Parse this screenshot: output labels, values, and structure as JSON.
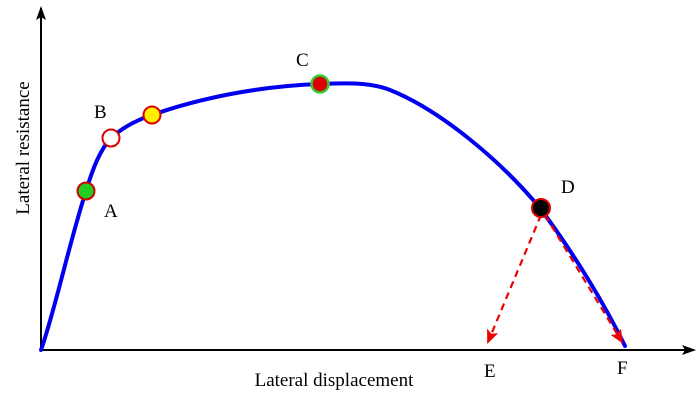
{
  "axes": {
    "x_label": "Lateral displacement",
    "y_label": "Lateral resistance",
    "color": "#000000"
  },
  "curve": {
    "color": "#0000ee"
  },
  "points": [
    {
      "id": "A",
      "label": "A",
      "fill": "#22cc22",
      "stroke": "#cc0000"
    },
    {
      "id": "B",
      "label": "B",
      "fill": "#ffffff",
      "stroke": "#dd0000"
    },
    {
      "id": "Y",
      "label": "",
      "fill": "#ffee00",
      "stroke": "#dd0000"
    },
    {
      "id": "C",
      "label": "C",
      "fill": "#dd0000",
      "stroke": "#33cc33"
    },
    {
      "id": "D",
      "label": "D",
      "fill": "#000000",
      "stroke": "#dd0000"
    }
  ],
  "unloading_paths": [
    {
      "from": "D",
      "to": "E",
      "label": "E",
      "color": "#ee0000",
      "style": "dashed"
    },
    {
      "from": "D",
      "to": "F",
      "label": "F",
      "color": "#ee0000",
      "style": "dashed"
    }
  ]
}
